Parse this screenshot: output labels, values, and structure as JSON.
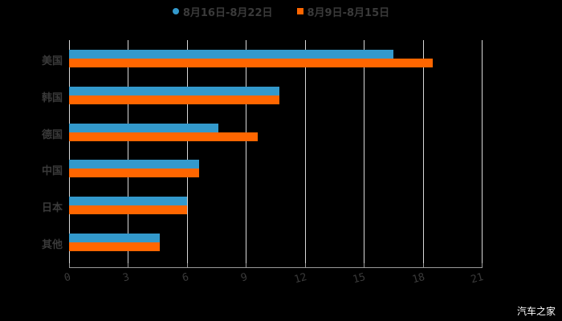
{
  "chart_data": {
    "type": "bar",
    "orientation": "horizontal",
    "title": "",
    "xlabel": "",
    "ylabel": "",
    "categories": [
      "美国",
      "韩国",
      "德国",
      "中国",
      "日本",
      "其他"
    ],
    "series": [
      {
        "name": "8月16日-8月22日",
        "color": "#3399cc",
        "values": [
          16.5,
          10.7,
          7.6,
          6.6,
          6.0,
          4.6
        ]
      },
      {
        "name": "8月9日-8月15日",
        "color": "#ff6600",
        "values": [
          18.5,
          10.7,
          9.6,
          6.6,
          6.0,
          4.6
        ]
      }
    ],
    "xlim": [
      0,
      21
    ],
    "xticks": [
      "0",
      "3",
      "6",
      "9",
      "12",
      "15",
      "18",
      "21"
    ],
    "grid": true,
    "legend_position": "top"
  },
  "legend": [
    {
      "label": "8月16日-8月22日",
      "color": "#3399cc",
      "shape": "circle"
    },
    {
      "label": "8月9日-8月15日",
      "color": "#ff6600",
      "shape": "square"
    }
  ],
  "watermark": "汽车之家"
}
